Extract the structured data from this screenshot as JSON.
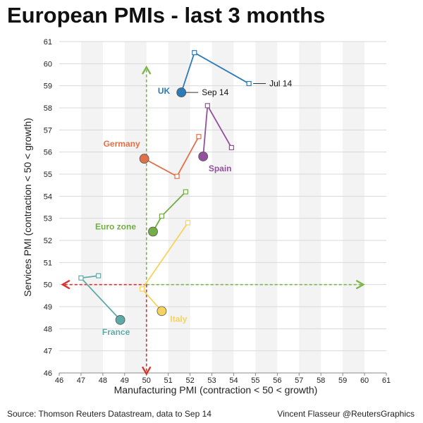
{
  "title": "European PMIs - last 3 months",
  "source": "Source: Thomson Reuters Datastream, data to Sep 14",
  "credit": "Vincent Flasseur @ReutersGraphics",
  "chart_data": {
    "type": "scatter",
    "xlabel": "Manufacturing PMI (contraction < 50 < growth)",
    "ylabel": "Services PMI (contraction < 50 < growth)",
    "xlim": [
      46,
      61
    ],
    "ylim": [
      46,
      61
    ],
    "xticks": [
      "46",
      "47",
      "48",
      "49",
      "50",
      "51",
      "52",
      "53",
      "54",
      "55",
      "56",
      "57",
      "58",
      "59",
      "60",
      "61"
    ],
    "yticks": [
      "46",
      "47",
      "48",
      "49",
      "50",
      "51",
      "52",
      "53",
      "54",
      "55",
      "56",
      "57",
      "58",
      "59",
      "60",
      "61"
    ],
    "grid": true,
    "series": [
      {
        "name": "UK",
        "color": "#2e7ab6",
        "points": [
          {
            "x": 54.7,
            "y": 59.1
          },
          {
            "x": 52.2,
            "y": 60.5
          },
          {
            "x": 51.6,
            "y": 58.7
          }
        ],
        "label_side": "left"
      },
      {
        "name": "Germany",
        "color": "#e07148",
        "points": [
          {
            "x": 52.4,
            "y": 56.7
          },
          {
            "x": 51.4,
            "y": 54.9
          },
          {
            "x": 49.9,
            "y": 55.7
          }
        ],
        "label_side": "left"
      },
      {
        "name": "Spain",
        "color": "#94509e",
        "points": [
          {
            "x": 53.9,
            "y": 56.2
          },
          {
            "x": 52.8,
            "y": 58.1
          },
          {
            "x": 52.6,
            "y": 55.8
          }
        ],
        "label_side": "below"
      },
      {
        "name": "Euro zone",
        "color": "#72ad45",
        "points": [
          {
            "x": 51.8,
            "y": 54.2
          },
          {
            "x": 50.7,
            "y": 53.1
          },
          {
            "x": 50.3,
            "y": 52.4
          }
        ],
        "label_side": "left"
      },
      {
        "name": "France",
        "color": "#5eaaa8",
        "points": [
          {
            "x": 47.8,
            "y": 50.4
          },
          {
            "x": 47.0,
            "y": 50.3
          },
          {
            "x": 48.8,
            "y": 48.4
          }
        ],
        "label_side": "below"
      },
      {
        "name": "Italy",
        "color": "#f5d35e",
        "points": [
          {
            "x": 51.9,
            "y": 52.8
          },
          {
            "x": 49.8,
            "y": 49.8
          },
          {
            "x": 50.7,
            "y": 48.8
          }
        ],
        "label_side": "right"
      }
    ],
    "annotations": [
      {
        "text": "Jul 14",
        "x": 54.7,
        "y": 59.1
      },
      {
        "text": "Sep 14",
        "x": 51.6,
        "y": 58.7
      }
    ],
    "arrows": {
      "green": "#7ab648",
      "red": "#d9302c"
    }
  }
}
